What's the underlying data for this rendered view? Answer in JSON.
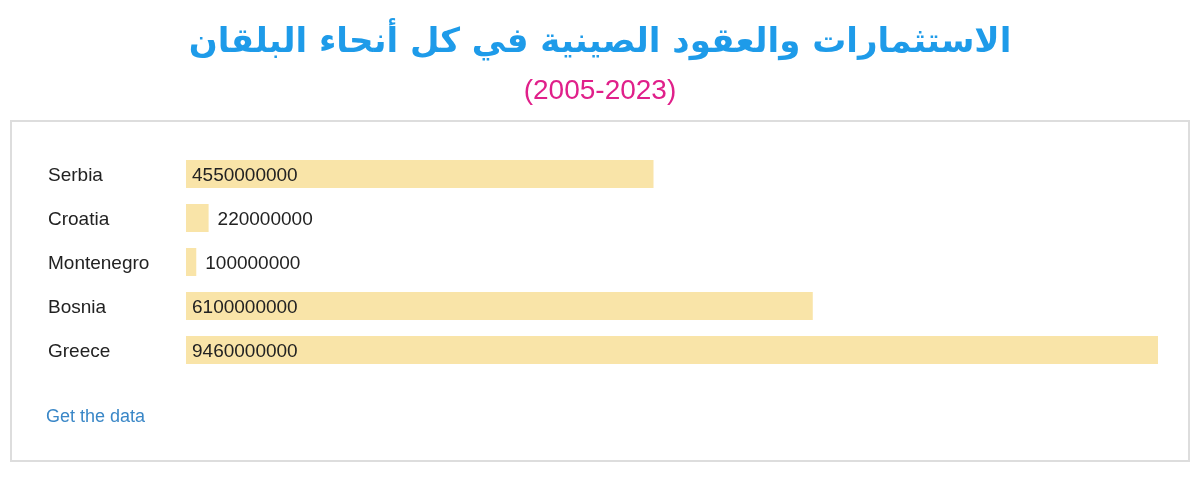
{
  "chart_data": {
    "type": "bar",
    "orientation": "horizontal",
    "title": "الاستثمارات والعقود الصينية في كل أنحاء البلقان",
    "subtitle": "(2005-2023)",
    "categories": [
      "Serbia",
      "Croatia",
      "Montenegro",
      "Bosnia",
      "Greece"
    ],
    "values": [
      4550000000,
      220000000,
      100000000,
      6100000000,
      9460000000
    ],
    "color": "#f9e4a8",
    "data_labels": true,
    "grid": false,
    "legend": false,
    "annotations": [
      "Get the data"
    ]
  }
}
